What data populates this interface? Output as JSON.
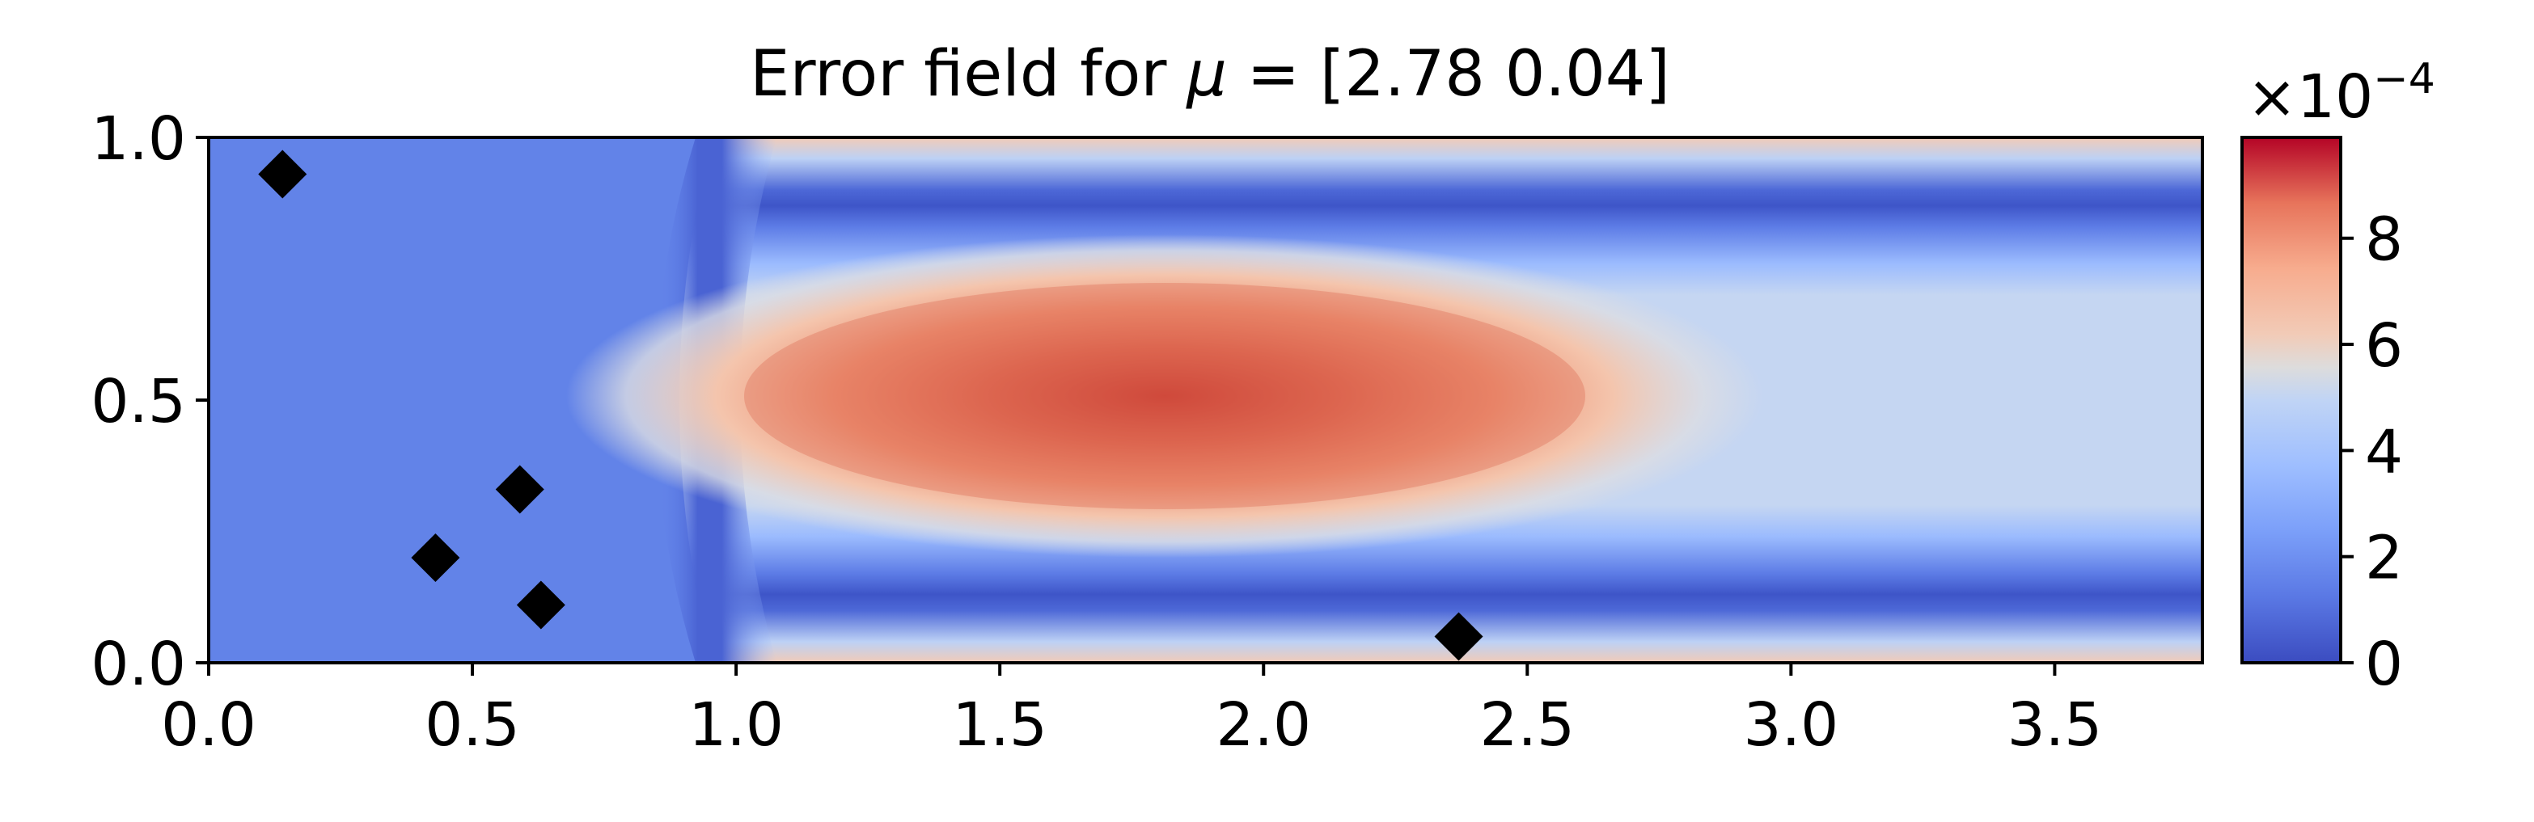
{
  "chart_data": {
    "type": "heatmap",
    "title_prefix": "Error field for ",
    "title_symbol": "μ",
    "title_suffix": " = [2.78 0.04]",
    "xlabel": "",
    "ylabel": "",
    "xlim": [
      0,
      3.78
    ],
    "ylim": [
      0,
      1
    ],
    "x_ticks": [
      {
        "value": 0.0,
        "label": "0.0"
      },
      {
        "value": 0.5,
        "label": "0.5"
      },
      {
        "value": 1.0,
        "label": "1.0"
      },
      {
        "value": 1.5,
        "label": "1.5"
      },
      {
        "value": 2.0,
        "label": "2.0"
      },
      {
        "value": 2.5,
        "label": "2.5"
      },
      {
        "value": 3.0,
        "label": "3.0"
      },
      {
        "value": 3.5,
        "label": "3.5"
      }
    ],
    "y_ticks": [
      {
        "value": 0.0,
        "label": "0.0"
      },
      {
        "value": 0.5,
        "label": "0.5"
      },
      {
        "value": 1.0,
        "label": "1.0"
      }
    ],
    "colormap": "coolwarm",
    "colorbar": {
      "range": [
        0,
        9.9
      ],
      "ticks": [
        {
          "value": 0,
          "label": "0"
        },
        {
          "value": 2,
          "label": "2"
        },
        {
          "value": 4,
          "label": "4"
        },
        {
          "value": 6,
          "label": "6"
        },
        {
          "value": 8,
          "label": "8"
        }
      ],
      "scale_base": "×10",
      "scale_exponent": "−4"
    },
    "field_description": "error field peaking near x=1.8, y=0.5",
    "markers": [
      {
        "x": 0.14,
        "y": 0.93
      },
      {
        "x": 0.43,
        "y": 0.2
      },
      {
        "x": 0.59,
        "y": 0.33
      },
      {
        "x": 0.63,
        "y": 0.11
      },
      {
        "x": 2.37,
        "y": 0.05
      }
    ],
    "marker_color": "#000000"
  }
}
